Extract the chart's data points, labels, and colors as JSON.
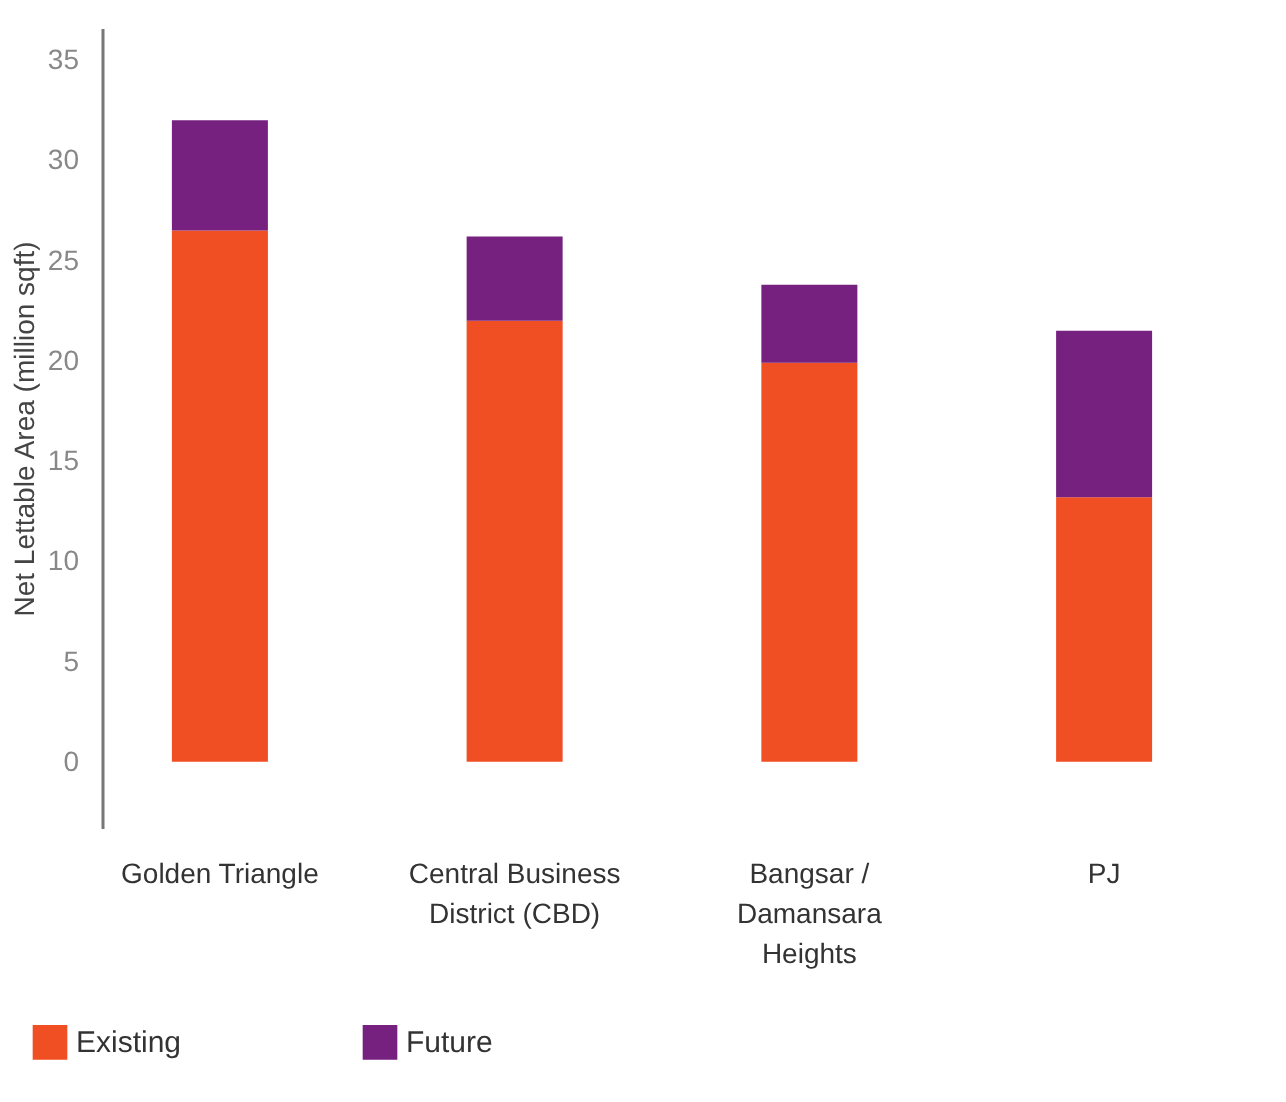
{
  "chart_data": {
    "type": "bar",
    "ylabel": "Net Lettable Area (million sqft)",
    "categories": [
      "Golden Triangle",
      "Central Business District (CBD)",
      "Bangsar / Damansara Heights",
      "PJ"
    ],
    "stacked": true,
    "series": [
      {
        "name": "Existing",
        "color": "#f04e23",
        "values": [
          26.5,
          22.0,
          19.9,
          13.2
        ]
      },
      {
        "name": "Future",
        "color": "#76217f",
        "values": [
          5.5,
          4.2,
          3.9,
          8.3
        ]
      }
    ],
    "ylim": [
      -3.3,
      36.6
    ],
    "yticks": [
      0,
      5,
      10,
      15,
      20,
      25,
      30,
      35
    ],
    "grid": false,
    "legend": "bottom left"
  }
}
